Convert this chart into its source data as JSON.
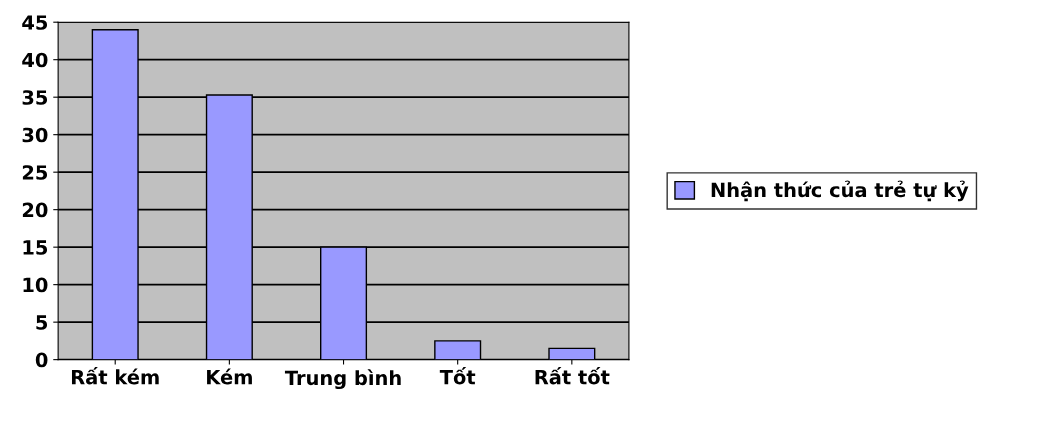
{
  "chart_data": {
    "type": "bar",
    "categories": [
      "Rất kém",
      "Kém",
      "Trung bình",
      "Tốt",
      "Rất tốt"
    ],
    "series": [
      {
        "name": "Nhận thức của trẻ tự kỷ",
        "color": "#9999ff",
        "values": [
          44,
          35.3,
          15,
          2.5,
          1.5
        ]
      }
    ],
    "ylim": [
      0,
      45
    ],
    "yticks": [
      0,
      5,
      10,
      15,
      20,
      25,
      30,
      35,
      40,
      45
    ],
    "grid": "y",
    "legend": "right"
  }
}
